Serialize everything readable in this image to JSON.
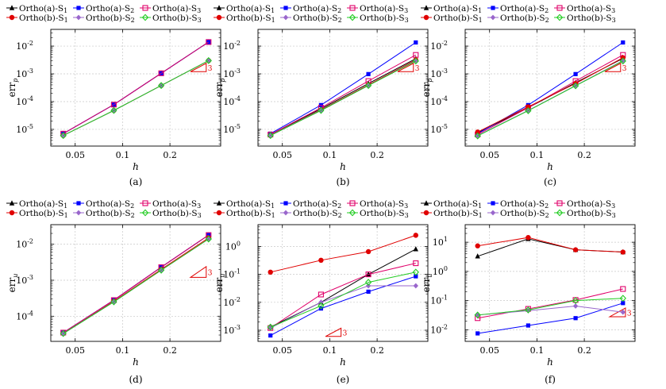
{
  "legend": {
    "entries": [
      {
        "label": "Ortho(a)-S",
        "sub": "1",
        "color": "#000000",
        "marker": "triangle"
      },
      {
        "label": "Ortho(a)-S",
        "sub": "2",
        "color": "#0000ff",
        "marker": "square"
      },
      {
        "label": "Ortho(a)-S",
        "sub": "3",
        "color": "#e0006a",
        "marker": "open-square"
      },
      {
        "label": "Ortho(b)-S",
        "sub": "1",
        "color": "#e00000",
        "marker": "circle"
      },
      {
        "label": "Ortho(b)-S",
        "sub": "2",
        "color": "#9966cc",
        "marker": "diamond"
      },
      {
        "label": "Ortho(b)-S",
        "sub": "3",
        "color": "#22cc22",
        "marker": "open-diamond"
      }
    ]
  },
  "chart_data": [
    {
      "type": "line",
      "caption": "(a)",
      "xlabel": "h",
      "ylabel_main": "err",
      "ylabel_sub": "p",
      "xscale": "log",
      "yscale": "log",
      "xlim": [
        0.035,
        0.42
      ],
      "ylim": [
        2.5e-06,
        0.04
      ],
      "xticks": [
        {
          "v": 0.05,
          "label": "0.05"
        },
        {
          "v": 0.1,
          "label": "0.1"
        },
        {
          "v": 0.2,
          "label": "0.2"
        }
      ],
      "yticks": [
        {
          "v": 1e-05,
          "b": "10",
          "e": "-5"
        },
        {
          "v": 0.0001,
          "b": "10",
          "e": "-4"
        },
        {
          "v": 0.001,
          "b": "10",
          "e": "-3"
        },
        {
          "v": 0.01,
          "b": "10",
          "e": "-2"
        }
      ],
      "triangle": {
        "x": [
          0.27,
          0.34
        ],
        "y": 0.0012,
        "label": "3"
      },
      "x": [
        0.042,
        0.088,
        0.176,
        0.352
      ],
      "series": [
        {
          "name": "Ortho(a)-S1",
          "values": [
            7e-06,
            7.8e-05,
            0.00105,
            0.014
          ]
        },
        {
          "name": "Ortho(a)-S2",
          "values": [
            7e-06,
            7.8e-05,
            0.00105,
            0.014
          ]
        },
        {
          "name": "Ortho(a)-S3",
          "values": [
            7e-06,
            7.8e-05,
            0.00105,
            0.014
          ]
        },
        {
          "name": "Ortho(b)-S1",
          "values": [
            6e-06,
            4.8e-05,
            0.00038,
            0.003
          ]
        },
        {
          "name": "Ortho(b)-S2",
          "values": [
            6e-06,
            4.8e-05,
            0.00038,
            0.003
          ]
        },
        {
          "name": "Ortho(b)-S3",
          "values": [
            6e-06,
            4.8e-05,
            0.00038,
            0.003
          ]
        }
      ]
    },
    {
      "type": "line",
      "caption": "(b)",
      "xlabel": "h",
      "ylabel_main": "err",
      "ylabel_sub": "p",
      "xscale": "log",
      "yscale": "log",
      "xlim": [
        0.035,
        0.42
      ],
      "ylim": [
        2.5e-06,
        0.04
      ],
      "xticks": [
        {
          "v": 0.05,
          "label": "0.05"
        },
        {
          "v": 0.1,
          "label": "0.1"
        },
        {
          "v": 0.2,
          "label": "0.2"
        }
      ],
      "yticks": [
        {
          "v": 1e-05,
          "b": "10",
          "e": "-5"
        },
        {
          "v": 0.0001,
          "b": "10",
          "e": "-4"
        },
        {
          "v": 0.001,
          "b": "10",
          "e": "-3"
        },
        {
          "v": 0.01,
          "b": "10",
          "e": "-2"
        }
      ],
      "triangle": {
        "x": [
          0.27,
          0.34
        ],
        "y": 0.0012,
        "label": "3"
      },
      "x": [
        0.042,
        0.088,
        0.176,
        0.352
      ],
      "series": [
        {
          "name": "Ortho(a)-S1",
          "values": [
            6.5e-06,
            5.5e-05,
            0.00045,
            0.0035
          ]
        },
        {
          "name": "Ortho(a)-S2",
          "values": [
            7e-06,
            7.5e-05,
            0.00098,
            0.0135
          ]
        },
        {
          "name": "Ortho(a)-S3",
          "values": [
            6.5e-06,
            6e-05,
            0.00055,
            0.0048
          ]
        },
        {
          "name": "Ortho(b)-S1",
          "values": [
            6e-06,
            5e-05,
            0.0004,
            0.0032
          ]
        },
        {
          "name": "Ortho(b)-S2",
          "values": [
            6e-06,
            4.8e-05,
            0.00038,
            0.003
          ]
        },
        {
          "name": "Ortho(b)-S3",
          "values": [
            6e-06,
            4.8e-05,
            0.00038,
            0.0029
          ]
        }
      ]
    },
    {
      "type": "line",
      "caption": "(c)",
      "xlabel": "h",
      "ylabel_main": "err",
      "ylabel_sub": "p",
      "xscale": "log",
      "yscale": "log",
      "xlim": [
        0.035,
        0.42
      ],
      "ylim": [
        2.5e-06,
        0.04
      ],
      "xticks": [
        {
          "v": 0.05,
          "label": "0.05"
        },
        {
          "v": 0.1,
          "label": "0.1"
        },
        {
          "v": 0.2,
          "label": "0.2"
        }
      ],
      "yticks": [
        {
          "v": 1e-05,
          "b": "10",
          "e": "-5"
        },
        {
          "v": 0.0001,
          "b": "10",
          "e": "-4"
        },
        {
          "v": 0.001,
          "b": "10",
          "e": "-3"
        },
        {
          "v": 0.01,
          "b": "10",
          "e": "-2"
        }
      ],
      "triangle": {
        "x": [
          0.27,
          0.34
        ],
        "y": 0.0012,
        "label": "3"
      },
      "x": [
        0.042,
        0.088,
        0.176,
        0.352
      ],
      "series": [
        {
          "name": "Ortho(a)-S1",
          "values": [
            7.5e-06,
            6e-05,
            0.00048,
            0.0036
          ]
        },
        {
          "name": "Ortho(a)-S2",
          "values": [
            7e-06,
            7.5e-05,
            0.00098,
            0.0135
          ]
        },
        {
          "name": "Ortho(a)-S3",
          "values": [
            6.5e-06,
            6e-05,
            0.00055,
            0.0048
          ]
        },
        {
          "name": "Ortho(b)-S1",
          "values": [
            8e-06,
            6.5e-05,
            0.00045,
            0.0038
          ]
        },
        {
          "name": "Ortho(b)-S2",
          "values": [
            6e-06,
            4.8e-05,
            0.00038,
            0.003
          ]
        },
        {
          "name": "Ortho(b)-S3",
          "values": [
            5.8e-06,
            4.7e-05,
            0.00037,
            0.0029
          ]
        }
      ]
    },
    {
      "type": "line",
      "caption": "(d)",
      "xlabel": "h",
      "ylabel_main": "err",
      "ylabel_sub": "u",
      "xscale": "log",
      "yscale": "log",
      "xlim": [
        0.035,
        0.42
      ],
      "ylim": [
        2e-05,
        0.035
      ],
      "xticks": [
        {
          "v": 0.05,
          "label": "0.05"
        },
        {
          "v": 0.1,
          "label": "0.1"
        },
        {
          "v": 0.2,
          "label": "0.2"
        }
      ],
      "yticks": [
        {
          "v": 0.0001,
          "b": "10",
          "e": "-4"
        },
        {
          "v": 0.001,
          "b": "10",
          "e": "-3"
        },
        {
          "v": 0.01,
          "b": "10",
          "e": "-2"
        }
      ],
      "triangle": {
        "x": [
          0.27,
          0.34
        ],
        "y": 0.0012,
        "label": "3"
      },
      "x": [
        0.042,
        0.088,
        0.176,
        0.352
      ],
      "series": [
        {
          "name": "Ortho(a)-S1",
          "values": [
            3.5e-05,
            0.00028,
            0.0023,
            0.018
          ]
        },
        {
          "name": "Ortho(a)-S2",
          "values": [
            3.5e-05,
            0.00028,
            0.0023,
            0.018
          ]
        },
        {
          "name": "Ortho(a)-S3",
          "values": [
            3.5e-05,
            0.00028,
            0.0023,
            0.018
          ]
        },
        {
          "name": "Ortho(b)-S1",
          "values": [
            3.3e-05,
            0.00026,
            0.002,
            0.015
          ]
        },
        {
          "name": "Ortho(b)-S2",
          "values": [
            3.3e-05,
            0.00025,
            0.0019,
            0.014
          ]
        },
        {
          "name": "Ortho(b)-S3",
          "values": [
            3.3e-05,
            0.00025,
            0.0019,
            0.014
          ]
        }
      ]
    },
    {
      "type": "line",
      "caption": "(e)",
      "xlabel": "h",
      "ylabel_main": "err",
      "ylabel_sub": "u",
      "xscale": "log",
      "yscale": "log",
      "xlim": [
        0.035,
        0.42
      ],
      "ylim": [
        0.0004,
        6.0
      ],
      "xticks": [
        {
          "v": 0.05,
          "label": "0.05"
        },
        {
          "v": 0.1,
          "label": "0.1"
        },
        {
          "v": 0.2,
          "label": "0.2"
        }
      ],
      "yticks": [
        {
          "v": 0.001,
          "b": "10",
          "e": "-3"
        },
        {
          "v": 0.01,
          "b": "10",
          "e": "-2"
        },
        {
          "v": 0.1,
          "b": "10",
          "e": "-1"
        },
        {
          "v": 1,
          "b": "10",
          "e": "0"
        }
      ],
      "triangle": {
        "x": [
          0.094,
          0.118
        ],
        "y": 0.0006,
        "label": "3"
      },
      "x": [
        0.042,
        0.088,
        0.176,
        0.352
      ],
      "series": [
        {
          "name": "Ortho(a)-S1",
          "values": [
            0.0013,
            0.01,
            0.1,
            0.8
          ]
        },
        {
          "name": "Ortho(a)-S2",
          "values": [
            0.00065,
            0.006,
            0.024,
            0.085
          ]
        },
        {
          "name": "Ortho(a)-S3",
          "values": [
            0.0012,
            0.019,
            0.1,
            0.25
          ]
        },
        {
          "name": "Ortho(b)-S1",
          "values": [
            0.12,
            0.32,
            0.65,
            2.5
          ]
        },
        {
          "name": "Ortho(b)-S2",
          "values": [
            0.0012,
            0.01,
            0.039,
            0.039
          ]
        },
        {
          "name": "Ortho(b)-S3",
          "values": [
            0.0013,
            0.0075,
            0.052,
            0.12
          ]
        }
      ]
    },
    {
      "type": "line",
      "caption": "(f)",
      "xlabel": "h",
      "ylabel_main": "err",
      "ylabel_sub": "u",
      "xscale": "log",
      "yscale": "log",
      "xlim": [
        0.035,
        0.42
      ],
      "ylim": [
        0.004,
        40
      ],
      "xticks": [
        {
          "v": 0.05,
          "label": "0.05"
        },
        {
          "v": 0.1,
          "label": "0.1"
        },
        {
          "v": 0.2,
          "label": "0.2"
        }
      ],
      "yticks": [
        {
          "v": 0.01,
          "b": "10",
          "e": "-2"
        },
        {
          "v": 0.1,
          "b": "10",
          "e": "-1"
        },
        {
          "v": 1,
          "b": "10",
          "e": "0"
        },
        {
          "v": 10,
          "b": "10",
          "e": "1"
        }
      ],
      "triangle": {
        "x": [
          0.29,
          0.365
        ],
        "y": 0.028,
        "label": "3"
      },
      "x": [
        0.042,
        0.088,
        0.176,
        0.352
      ],
      "series": [
        {
          "name": "Ortho(a)-S1",
          "values": [
            3.3,
            13.0,
            5.5,
            4.6
          ]
        },
        {
          "name": "Ortho(a)-S2",
          "values": [
            0.0075,
            0.014,
            0.025,
            0.082
          ]
        },
        {
          "name": "Ortho(a)-S3",
          "values": [
            0.025,
            0.052,
            0.105,
            0.25
          ]
        },
        {
          "name": "Ortho(b)-S1",
          "values": [
            7.5,
            14.5,
            5.5,
            4.6
          ]
        },
        {
          "name": "Ortho(b)-S2",
          "values": [
            0.032,
            0.045,
            0.065,
            0.04
          ]
        },
        {
          "name": "Ortho(b)-S3",
          "values": [
            0.032,
            0.048,
            0.1,
            0.12
          ]
        }
      ]
    }
  ]
}
